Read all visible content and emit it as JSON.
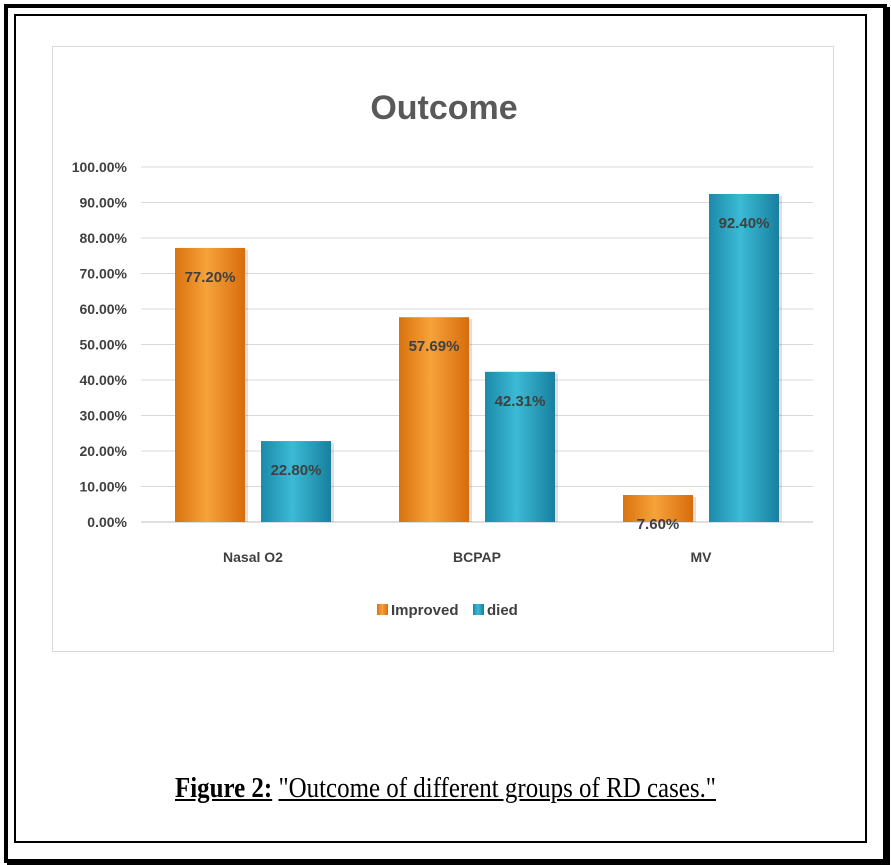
{
  "chart_data": {
    "type": "bar",
    "title": "Outcome",
    "categories": [
      "Nasal O2",
      "BCPAP",
      "MV"
    ],
    "series": [
      {
        "name": "Improved",
        "values": [
          77.2,
          57.69,
          7.6
        ],
        "labels": [
          "77.20%",
          "57.69%",
          "7.60%"
        ],
        "color": "#f28e1c"
      },
      {
        "name": "died",
        "values": [
          22.8,
          42.31,
          92.4
        ],
        "labels": [
          "22.80%",
          "42.31%",
          "92.40%"
        ],
        "color": "#2aa6c4"
      }
    ],
    "ylim": [
      0,
      100
    ],
    "yticks": [
      "0.00%",
      "10.00%",
      "20.00%",
      "30.00%",
      "40.00%",
      "50.00%",
      "60.00%",
      "70.00%",
      "80.00%",
      "90.00%",
      "100.00%"
    ],
    "xlabel": "",
    "ylabel": "",
    "grid": true,
    "legend_position": "bottom"
  },
  "caption": {
    "label": "Figure 2:",
    "text": "\"Outcome of different groups of RD cases.\""
  }
}
